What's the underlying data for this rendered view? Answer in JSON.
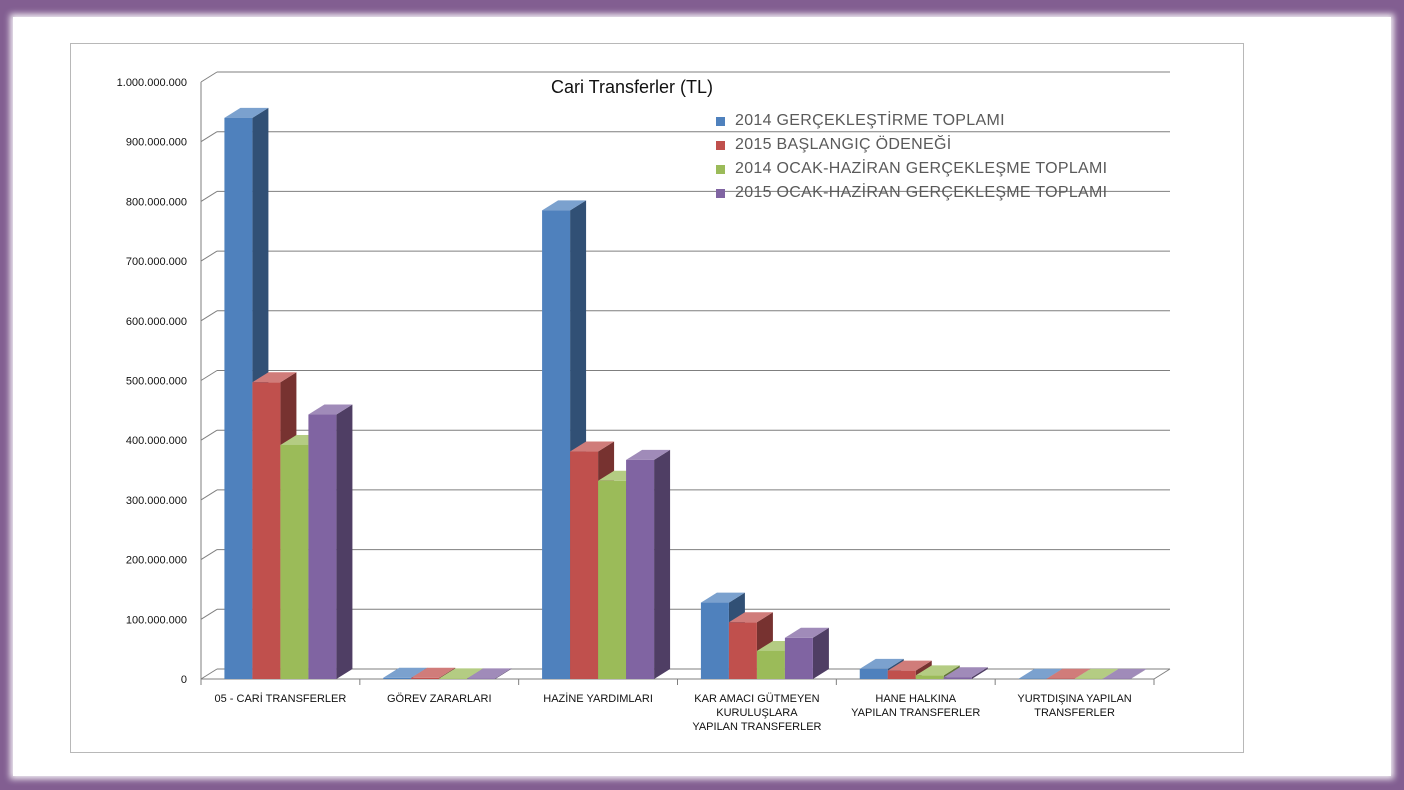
{
  "chart_data": {
    "type": "bar",
    "title": "Cari Transferler (TL)",
    "categories": [
      "05 - CARİ TRANSFERLER",
      "GÖREV ZARARLARI",
      "HAZİNE YARDIMLARI",
      "KAR AMACI GÜTMEYEN KURULUŞLARA YAPILAN TRANSFERLER",
      "HANE HALKINA YAPILAN TRANSFERLER",
      "YURTDIŞINA YAPILAN TRANSFERLER"
    ],
    "category_lines": [
      [
        "05 - CARİ TRANSFERLER"
      ],
      [
        "GÖREV ZARARLARI"
      ],
      [
        "HAZİNE YARDIMLARI"
      ],
      [
        "KAR AMACI GÜTMEYEN",
        "KURULUŞLARA",
        "YAPILAN TRANSFERLER"
      ],
      [
        "HANE HALKINA",
        "YAPILAN TRANSFERLER"
      ],
      [
        "YURTDIŞINA  YAPILAN",
        "TRANSFERLER"
      ]
    ],
    "series": [
      {
        "name": "2014 GERÇEKLEŞTİRME TOPLAMI",
        "color": "#4f81bd",
        "values": [
          940000000,
          2000000,
          785000000,
          128000000,
          17000000,
          500000
        ]
      },
      {
        "name": "2015 BAŞLANGIÇ ÖDENEĞİ",
        "color": "#c0504d",
        "values": [
          497000000,
          2000000,
          381000000,
          95000000,
          14000000,
          500000
        ]
      },
      {
        "name": "2014 OCAK-HAZİRAN GERÇEKLEŞME TOPLAMI",
        "color": "#9bbb59",
        "values": [
          392000000,
          1000000,
          332000000,
          47000000,
          6000000,
          300000
        ]
      },
      {
        "name": "2015 OCAK-HAZİRAN GERÇEKLEŞME TOPLAMI",
        "color": "#8064a2",
        "values": [
          443000000,
          1000000,
          367000000,
          69000000,
          3000000,
          300000
        ]
      }
    ],
    "ylim": [
      0,
      1000000000
    ],
    "yticks": [
      "0",
      "100.000.000",
      "200.000.000",
      "300.000.000",
      "400.000.000",
      "500.000.000",
      "600.000.000",
      "700.000.000",
      "800.000.000",
      "900.000.000",
      "1.000.000.000"
    ],
    "grid": true,
    "legend_position": "top-right",
    "style": "3d-clustered-column"
  }
}
